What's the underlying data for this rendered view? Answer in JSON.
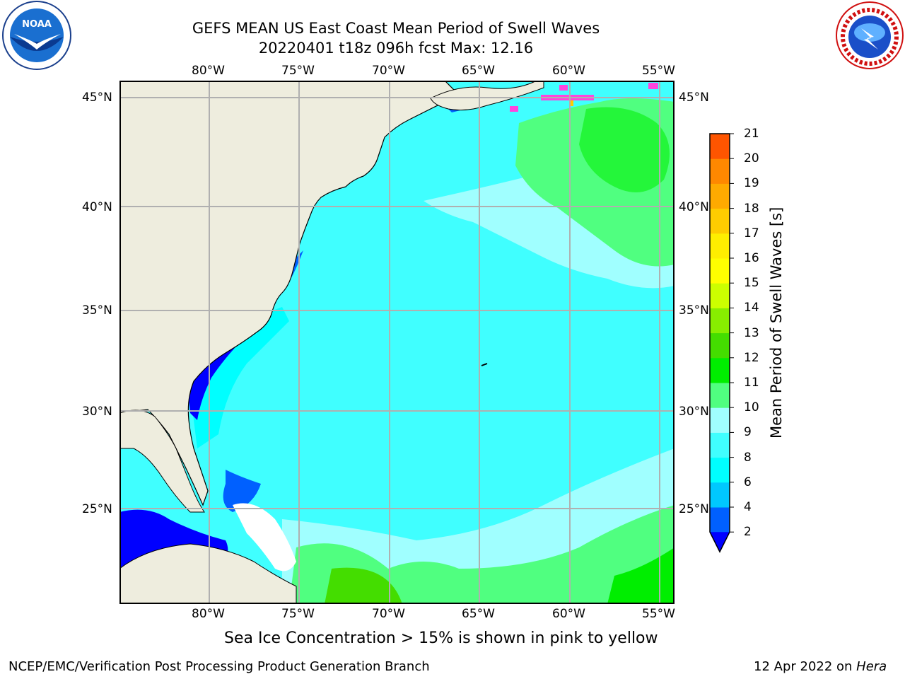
{
  "title": {
    "line1": "GEFS MEAN US East Coast Mean Period of Swell Waves",
    "line2": "20220401 t18z 096h fcst   Max: 12.16"
  },
  "logos": {
    "left_text": "NOAA",
    "right_text": "NATIONAL WEATHER SERVICE"
  },
  "map": {
    "lon_labels": [
      "80°W",
      "75°W",
      "70°W",
      "65°W",
      "60°W",
      "55°W"
    ],
    "lat_labels": [
      "45°N",
      "40°N",
      "35°N",
      "30°N",
      "25°N"
    ],
    "colors": {
      "land": "#eeedde",
      "coast": "#000000",
      "grid": "#b0b0b0",
      "no_data": "#ffffff",
      "ice": "#ff44dd"
    }
  },
  "colorbar": {
    "title": "Mean Period of Swell Waves [s]",
    "ticks": [
      "2",
      "4",
      "6",
      "8",
      "9",
      "10",
      "11",
      "12",
      "13",
      "14",
      "15",
      "16",
      "17",
      "18",
      "19",
      "20",
      "21"
    ],
    "colors": [
      "#0060ff",
      "#00c8ff",
      "#00ffff",
      "#40ffff",
      "#a0ffff",
      "#50ff80",
      "#00ee00",
      "#44dd00",
      "#88ee00",
      "#ccff00",
      "#ffff00",
      "#ffee00",
      "#ffcc00",
      "#ffaa00",
      "#ff8800",
      "#ff5500",
      "#ff2200",
      "#ff0000"
    ],
    "under_color": "#0000ff"
  },
  "note": "Sea Ice Concentration > 15% is shown in pink to yellow",
  "footer": {
    "left": "NCEP/EMC/Verification Post Processing Product Generation Branch",
    "date": "12 Apr 2022 on ",
    "machine": "Hera"
  }
}
